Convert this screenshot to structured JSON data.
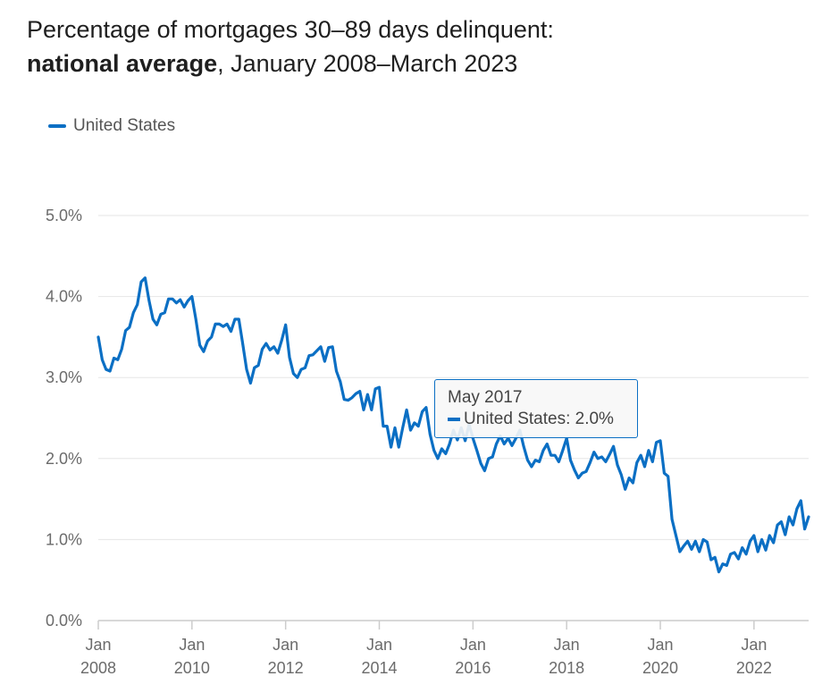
{
  "title": {
    "line1": "Percentage of mortgages 30–89 days delinquent:",
    "line2_bold": "national average",
    "line2_rest": ", January 2008–March 2023"
  },
  "tooltip": {
    "date": "May 2017",
    "series_text": "United States: 2.0%"
  },
  "colors": {
    "series": "#0b6fc4",
    "grid": "#e6e6e6",
    "axis": "#cccccc"
  },
  "chart_data": {
    "type": "line",
    "title": "Percentage of mortgages 30–89 days delinquent: national average, January 2008–March 2023",
    "xlabel": "",
    "ylabel": "",
    "ylim": [
      0,
      5
    ],
    "y_ticks": [
      "0.0%",
      "1.0%",
      "2.0%",
      "3.0%",
      "4.0%",
      "5.0%"
    ],
    "x_ticks": [
      {
        "month": "Jan",
        "year": "2008"
      },
      {
        "month": "Jan",
        "year": "2010"
      },
      {
        "month": "Jan",
        "year": "2012"
      },
      {
        "month": "Jan",
        "year": "2014"
      },
      {
        "month": "Jan",
        "year": "2016"
      },
      {
        "month": "Jan",
        "year": "2018"
      },
      {
        "month": "Jan",
        "year": "2020"
      },
      {
        "month": "Jan",
        "year": "2022"
      }
    ],
    "x_range": [
      "2008-01",
      "2023-03"
    ],
    "grid": true,
    "legend": "top-left",
    "series": [
      {
        "name": "United States",
        "start": "2008-01",
        "values": [
          3.5,
          3.22,
          3.1,
          3.08,
          3.24,
          3.22,
          3.35,
          3.58,
          3.62,
          3.8,
          3.9,
          4.18,
          4.23,
          3.95,
          3.72,
          3.65,
          3.78,
          3.8,
          3.97,
          3.97,
          3.92,
          3.96,
          3.87,
          3.95,
          4.0,
          3.72,
          3.4,
          3.32,
          3.45,
          3.5,
          3.66,
          3.66,
          3.63,
          3.66,
          3.57,
          3.72,
          3.72,
          3.42,
          3.1,
          2.93,
          3.12,
          3.15,
          3.35,
          3.42,
          3.34,
          3.38,
          3.3,
          3.46,
          3.65,
          3.25,
          3.05,
          3.0,
          3.1,
          3.12,
          3.27,
          3.28,
          3.33,
          3.38,
          3.2,
          3.37,
          3.38,
          3.08,
          2.95,
          2.73,
          2.72,
          2.75,
          2.8,
          2.83,
          2.6,
          2.79,
          2.6,
          2.86,
          2.88,
          2.4,
          2.4,
          2.14,
          2.38,
          2.14,
          2.38,
          2.6,
          2.35,
          2.44,
          2.4,
          2.58,
          2.63,
          2.3,
          2.1,
          2.0,
          2.12,
          2.06,
          2.18,
          2.35,
          2.23,
          2.38,
          2.22,
          2.42,
          2.25,
          2.1,
          1.94,
          1.85,
          2.0,
          2.02,
          2.18,
          2.28,
          2.18,
          2.25,
          2.16,
          2.25,
          2.35,
          2.15,
          1.98,
          1.9,
          1.98,
          1.96,
          2.1,
          2.18,
          2.04,
          2.04,
          1.96,
          2.1,
          2.25,
          1.98,
          1.86,
          1.76,
          1.82,
          1.84,
          1.95,
          2.08,
          2.0,
          2.02,
          1.96,
          2.05,
          2.15,
          1.92,
          1.8,
          1.62,
          1.76,
          1.7,
          1.95,
          2.04,
          1.9,
          2.1,
          1.96,
          2.2,
          2.22,
          1.82,
          1.78,
          1.25,
          1.05,
          0.85,
          0.92,
          0.98,
          0.88,
          0.98,
          0.85,
          1.0,
          0.97,
          0.75,
          0.78,
          0.6,
          0.7,
          0.68,
          0.82,
          0.84,
          0.76,
          0.9,
          0.82,
          0.98,
          1.05,
          0.85,
          1.0,
          0.87,
          1.05,
          0.96,
          1.18,
          1.22,
          1.06,
          1.28,
          1.18,
          1.38,
          1.48,
          1.13,
          1.28
        ]
      }
    ]
  }
}
